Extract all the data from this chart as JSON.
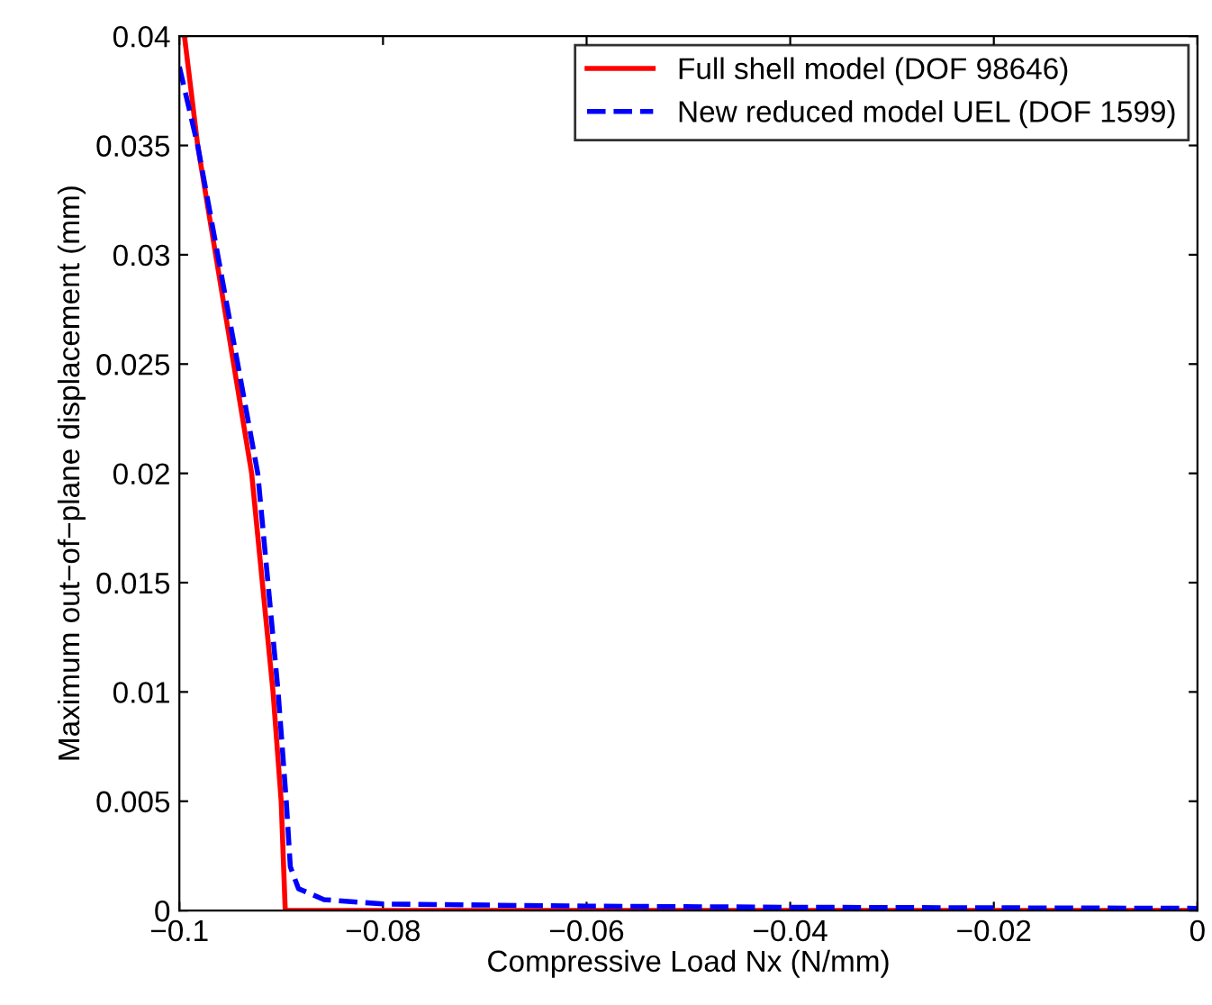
{
  "chart_data": {
    "type": "line",
    "xlabel": "Compressive Load Nx (N/mm)",
    "ylabel": "Maximum out−of−plane displacement (mm)",
    "xlim": [
      -0.1,
      0
    ],
    "ylim": [
      0,
      0.04
    ],
    "xticks": [
      {
        "value": -0.1,
        "label": "−0.1"
      },
      {
        "value": -0.08,
        "label": "−0.08"
      },
      {
        "value": -0.06,
        "label": "−0.06"
      },
      {
        "value": -0.04,
        "label": "−0.04"
      },
      {
        "value": -0.02,
        "label": "−0.02"
      },
      0
    ],
    "yticks": [
      0,
      0.005,
      0.01,
      0.015,
      0.02,
      0.025,
      0.03,
      0.035,
      0.04
    ],
    "grid": false,
    "legend": "top right",
    "series": [
      {
        "name": "Full shell model (DOF 98646)",
        "color": "#ff0000",
        "line_style": "solid",
        "x": [
          -0.0995,
          -0.0982,
          -0.0929,
          -0.0908,
          -0.09,
          -0.0896,
          -0.0896,
          0
        ],
        "values": [
          0.04,
          0.035,
          0.02,
          0.01,
          0.005,
          0.0,
          0.0,
          0.0
        ]
      },
      {
        "name": "New reduced model UEL (DOF 1599)",
        "color": "#0000ff",
        "line_style": "dashed",
        "x": [
          -0.1,
          -0.0982,
          -0.0923,
          -0.0903,
          -0.0895,
          -0.0891,
          -0.0883,
          -0.0858,
          -0.08,
          -0.06,
          -0.04,
          0
        ],
        "values": [
          0.0386,
          0.035,
          0.02,
          0.01,
          0.005,
          0.002,
          0.001,
          0.0005,
          0.0003,
          0.0002,
          0.00015,
          0.0001
        ]
      }
    ]
  }
}
